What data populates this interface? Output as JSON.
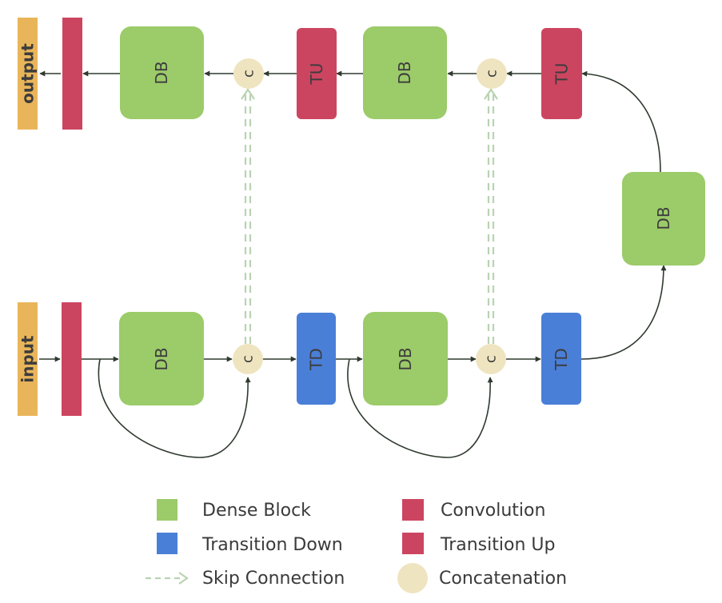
{
  "colors": {
    "dense_block": "#9ccb6a",
    "transition_down": "#4a7fd8",
    "convolution": "#cc4560",
    "transition_up": "#cc4560",
    "io": "#e9b55a",
    "concat": "#efe4c0",
    "skip": "#b9d3b2",
    "arrow": "#2f3a2f"
  },
  "nodes": {
    "output_label": "output",
    "input_label": "input",
    "dense_block": "DB",
    "transition_down": "TD",
    "transition_up": "TU",
    "concat": "c"
  },
  "legend": {
    "dense_block": "Dense Block",
    "transition_down": "Transition Down",
    "skip_connection": "Skip Connection",
    "convolution": "Convolution",
    "transition_up": "Transition Up",
    "concatenation": "Concatenation"
  }
}
